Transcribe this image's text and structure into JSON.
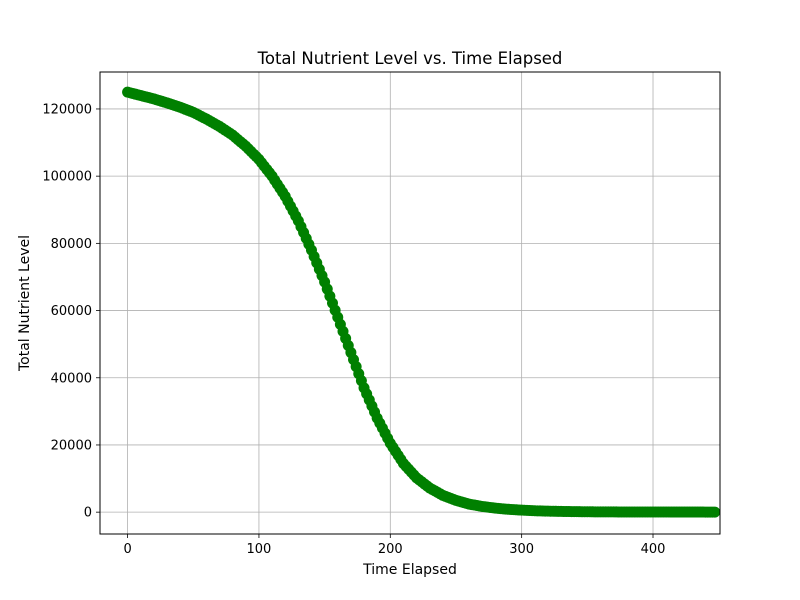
{
  "chart_data": {
    "type": "scatter",
    "title": "Total Nutrient Level vs. Time Elapsed",
    "xlabel": "Time Elapsed",
    "ylabel": "Total Nutrient Level",
    "xlim": [
      -21,
      451
    ],
    "ylim": [
      -6500,
      131000
    ],
    "xticks": [
      0,
      100,
      200,
      300,
      400
    ],
    "yticks": [
      0,
      20000,
      40000,
      60000,
      80000,
      100000,
      120000
    ],
    "xtick_labels": [
      "0",
      "100",
      "200",
      "300",
      "400"
    ],
    "ytick_labels": [
      "0",
      "20000",
      "40000",
      "60000",
      "80000",
      "100000",
      "120000"
    ],
    "grid": true,
    "marker_color": "#008000",
    "x": [
      0,
      10,
      20,
      30,
      40,
      50,
      60,
      70,
      80,
      90,
      100,
      110,
      120,
      130,
      140,
      150,
      160,
      170,
      180,
      190,
      200,
      210,
      220,
      230,
      240,
      250,
      260,
      270,
      280,
      290,
      300,
      310,
      320,
      330,
      340,
      350,
      360,
      370,
      380,
      390,
      400,
      410,
      420,
      430,
      440,
      447
    ],
    "y": [
      125000,
      124000,
      123000,
      121800,
      120500,
      119000,
      117000,
      114800,
      112200,
      108900,
      105000,
      100000,
      94000,
      86700,
      78000,
      68500,
      58000,
      47500,
      37000,
      28000,
      20500,
      14500,
      10200,
      7200,
      5000,
      3500,
      2400,
      1700,
      1200,
      850,
      600,
      420,
      300,
      220,
      160,
      120,
      90,
      70,
      55,
      45,
      40,
      35,
      32,
      30,
      28,
      27
    ]
  }
}
